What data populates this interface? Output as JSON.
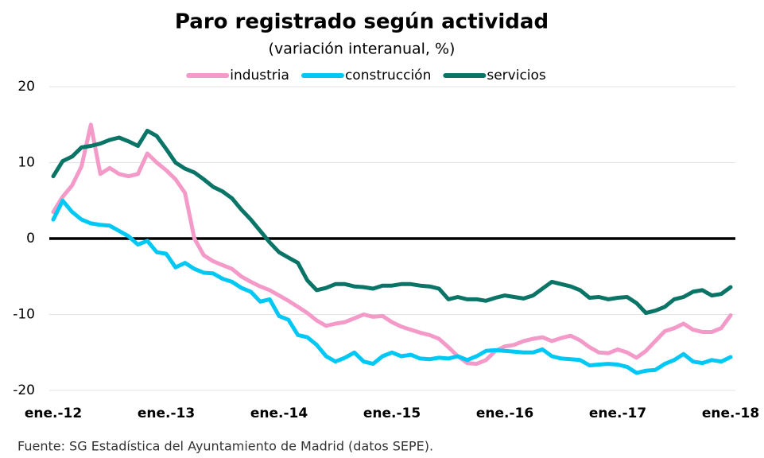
{
  "chart_data": {
    "type": "line",
    "title": "Paro registrado según actividad",
    "subtitle": "(variación interanual, %)",
    "source": "Fuente: SG Estadística del Ayuntamiento de Madrid (datos SEPE).",
    "categories": [
      "ene.-12",
      null,
      null,
      null,
      null,
      null,
      null,
      null,
      null,
      null,
      null,
      null,
      "ene.-13",
      null,
      null,
      null,
      null,
      null,
      null,
      null,
      null,
      null,
      null,
      null,
      "ene.-14",
      null,
      null,
      null,
      null,
      null,
      null,
      null,
      null,
      null,
      null,
      null,
      "ene.-15",
      null,
      null,
      null,
      null,
      null,
      null,
      null,
      null,
      null,
      null,
      null,
      "ene.-16",
      null,
      null,
      null,
      null,
      null,
      null,
      null,
      null,
      null,
      null,
      null,
      "ene.-17",
      null,
      null,
      null,
      null,
      null,
      null,
      null,
      null,
      null,
      null,
      null,
      "ene.-18"
    ],
    "series": [
      {
        "name": "industria",
        "color": "#f49ac9",
        "values": [
          3.5,
          5.5,
          7,
          9.5,
          15,
          8.5,
          9.3,
          8.5,
          8.2,
          8.5,
          11.2,
          10,
          9,
          7.8,
          6,
          0,
          -2.2,
          -3,
          -3.5,
          -4,
          -5,
          -5.7,
          -6.3,
          -6.8,
          -7.5,
          -8.2,
          -9,
          -9.8,
          -10.8,
          -11.5,
          -11.2,
          -11,
          -10.5,
          -10,
          -10.3,
          -10.2,
          -11,
          -11.6,
          -12,
          -12.4,
          -12.7,
          -13.2,
          -14.3,
          -15.5,
          -16.4,
          -16.5,
          -16,
          -14.8,
          -14.2,
          -14,
          -13.5,
          -13.2,
          -13,
          -13.5,
          -13.1,
          -12.8,
          -13.4,
          -14.3,
          -15,
          -15.1,
          -14.6,
          -15,
          -15.7,
          -14.8,
          -13.5,
          -12.2,
          -11.8,
          -11.2,
          -12,
          -12.3,
          -12.3,
          -11.8,
          -10.1
        ]
      },
      {
        "name": "construcción",
        "color": "#00c8f5",
        "values": [
          2.5,
          5,
          3.5,
          2.5,
          2,
          1.8,
          1.7,
          1,
          0.3,
          -0.8,
          -0.3,
          -1.8,
          -2,
          -3.8,
          -3.2,
          -4,
          -4.5,
          -4.6,
          -5.3,
          -5.7,
          -6.5,
          -7,
          -8.3,
          -8,
          -10.2,
          -10.7,
          -12.7,
          -13,
          -14,
          -15.5,
          -16.2,
          -15.7,
          -15,
          -16.2,
          -16.5,
          -15.5,
          -15,
          -15.5,
          -15.3,
          -15.8,
          -15.9,
          -15.7,
          -15.8,
          -15.5,
          -16,
          -15.5,
          -14.8,
          -14.7,
          -14.8,
          -14.9,
          -15,
          -15,
          -14.6,
          -15.5,
          -15.8,
          -15.9,
          -16,
          -16.7,
          -16.6,
          -16.5,
          -16.6,
          -16.9,
          -17.7,
          -17.4,
          -17.3,
          -16.5,
          -16,
          -15.2,
          -16.2,
          -16.4,
          -16,
          -16.2,
          -15.6
        ]
      },
      {
        "name": "servicios",
        "color": "#0a7467",
        "values": [
          8.2,
          10.2,
          10.8,
          12,
          12.2,
          12.5,
          13,
          13.3,
          12.8,
          12.2,
          14.2,
          13.5,
          11.8,
          10,
          9.2,
          8.7,
          7.8,
          6.8,
          6.2,
          5.3,
          3.8,
          2.5,
          1,
          -0.5,
          -1.8,
          -2.5,
          -3.2,
          -5.5,
          -6.8,
          -6.5,
          -6,
          -6,
          -6.3,
          -6.4,
          -6.6,
          -6.2,
          -6.2,
          -6,
          -6,
          -6.2,
          -6.3,
          -6.6,
          -8,
          -7.7,
          -8,
          -8,
          -8.2,
          -7.8,
          -7.5,
          -7.7,
          -7.9,
          -7.5,
          -6.6,
          -5.7,
          -6,
          -6.3,
          -6.8,
          -7.8,
          -7.7,
          -8,
          -7.8,
          -7.7,
          -8.5,
          -9.8,
          -9.5,
          -9,
          -8,
          -7.7,
          -7,
          -6.8,
          -7.5,
          -7.3,
          -6.4
        ]
      }
    ],
    "ylim": [
      -20,
      20
    ],
    "yticks": [
      -20,
      -10,
      0,
      10,
      20
    ],
    "grid": true,
    "legend": "top"
  }
}
